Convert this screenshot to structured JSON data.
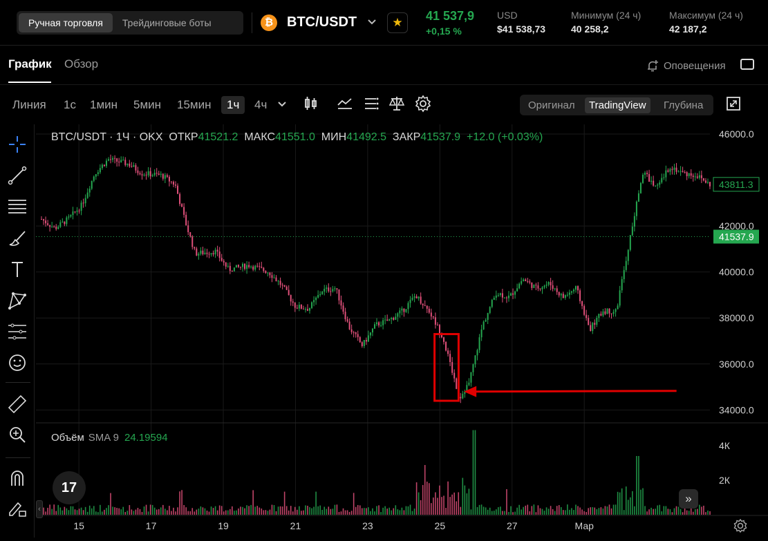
{
  "topbar": {
    "mode_tabs": [
      "Ручная торговля",
      "Трейдинговые боты"
    ],
    "active_mode": 0,
    "coin_glyph": "₿",
    "pair": "BTC/USDT",
    "price": "41 537,9",
    "change": "+0,15 %",
    "stats": [
      {
        "label": "USD",
        "value": "$41 538,73"
      },
      {
        "label": "Минимум (24 ч)",
        "value": "40 258,2"
      },
      {
        "label": "Максимум (24 ч)",
        "value": "42 187,2"
      }
    ],
    "colors": {
      "up": "#25a750",
      "down": "#e0507a",
      "star": "#f0b90b",
      "coin": "#f7931a"
    }
  },
  "tabs": {
    "chart": "График",
    "overview": "Обзор",
    "alerts": "Оповещения"
  },
  "toolbar": {
    "timeframes": [
      "Линия",
      "1с",
      "1мин",
      "5мин",
      "15мин",
      "1ч",
      "4ч"
    ],
    "selected_timeframe": "1ч",
    "views": [
      "Оригинал",
      "TradingView",
      "Глубина"
    ],
    "active_view": "TradingView",
    "icons": [
      "candles-icon",
      "indicators-icon",
      "list-settings-icon",
      "compare-icon",
      "settings-icon",
      "fullscreen-icon"
    ]
  },
  "left_tools": [
    "crosshair-icon",
    "trend-line-icon",
    "fib-lines-icon",
    "brush-icon",
    "text-icon",
    "pattern-icon",
    "measure-lines-icon",
    "emoji-icon",
    "ruler-icon",
    "zoom-icon",
    "magnet-icon",
    "lock-pencil-icon"
  ],
  "legend": {
    "symbol": "BTC/USDT · 1Ч · OKX",
    "open_label": "ОТКР",
    "open": "41521.2",
    "high_label": "МАКС",
    "high": "41551.0",
    "low_label": "МИН",
    "low": "41492.5",
    "close_label": "ЗАКР",
    "close": "41537.9",
    "change": "+12.0 (+0.03%)"
  },
  "volume_legend": {
    "title": "Объём",
    "sma": "SMA 9",
    "value": "24.19594"
  },
  "tv_logo": "17",
  "fwd_glyph": "»",
  "chart_data": {
    "type": "candlestick",
    "ylim": [
      33500,
      46300
    ],
    "y_ticks": [
      34000,
      36000,
      38000,
      40000,
      42000,
      46000
    ],
    "y_tick_labels": [
      "34000.0",
      "36000.0",
      "38000.0",
      "40000.0",
      "42000.0",
      "46000.0"
    ],
    "x_tick_labels": [
      "15",
      "17",
      "19",
      "21",
      "23",
      "25",
      "27",
      "Мар"
    ],
    "x_tick_fraction": [
      0.056,
      0.164,
      0.272,
      0.38,
      0.488,
      0.596,
      0.704,
      0.812
    ],
    "price_tags": [
      {
        "label": "43811.3",
        "value": 43811.3,
        "style": "outline"
      },
      {
        "label": "41537.9",
        "value": 41537.9,
        "style": "filled"
      }
    ],
    "vol_ticks": [
      "4К",
      "2К"
    ],
    "vol_tick_values": [
      4000,
      2000
    ],
    "vol_max": 5000,
    "path": [
      [
        0,
        42300
      ],
      [
        0.02,
        41900
      ],
      [
        0.04,
        42300
      ],
      [
        0.06,
        42900
      ],
      [
        0.08,
        44300
      ],
      [
        0.1,
        44900
      ],
      [
        0.13,
        44700
      ],
      [
        0.15,
        44300
      ],
      [
        0.18,
        44200
      ],
      [
        0.2,
        43800
      ],
      [
        0.215,
        42200
      ],
      [
        0.23,
        40800
      ],
      [
        0.26,
        40900
      ],
      [
        0.28,
        40100
      ],
      [
        0.31,
        40300
      ],
      [
        0.34,
        40000
      ],
      [
        0.36,
        39400
      ],
      [
        0.38,
        38500
      ],
      [
        0.4,
        38400
      ],
      [
        0.42,
        39200
      ],
      [
        0.44,
        39300
      ],
      [
        0.46,
        37600
      ],
      [
        0.48,
        36800
      ],
      [
        0.5,
        37700
      ],
      [
        0.52,
        37900
      ],
      [
        0.54,
        38300
      ],
      [
        0.56,
        39000
      ],
      [
        0.58,
        38300
      ],
      [
        0.6,
        37200
      ],
      [
        0.62,
        35100
      ],
      [
        0.625,
        34500
      ],
      [
        0.64,
        35200
      ],
      [
        0.66,
        37700
      ],
      [
        0.68,
        39100
      ],
      [
        0.7,
        38900
      ],
      [
        0.72,
        39700
      ],
      [
        0.74,
        39300
      ],
      [
        0.76,
        39500
      ],
      [
        0.78,
        38900
      ],
      [
        0.8,
        39300
      ],
      [
        0.82,
        37500
      ],
      [
        0.84,
        38300
      ],
      [
        0.86,
        38300
      ],
      [
        0.88,
        41400
      ],
      [
        0.9,
        44400
      ],
      [
        0.92,
        43600
      ],
      [
        0.94,
        44600
      ],
      [
        0.96,
        44300
      ],
      [
        0.98,
        44200
      ],
      [
        1.0,
        43800
      ]
    ],
    "annotation": {
      "box_low": 34400,
      "box_high": 37300,
      "box_x": [
        0.588,
        0.624
      ],
      "arrow_x": [
        0.632,
        0.95
      ],
      "arrow_y": 34800,
      "color": "#e00000"
    }
  }
}
